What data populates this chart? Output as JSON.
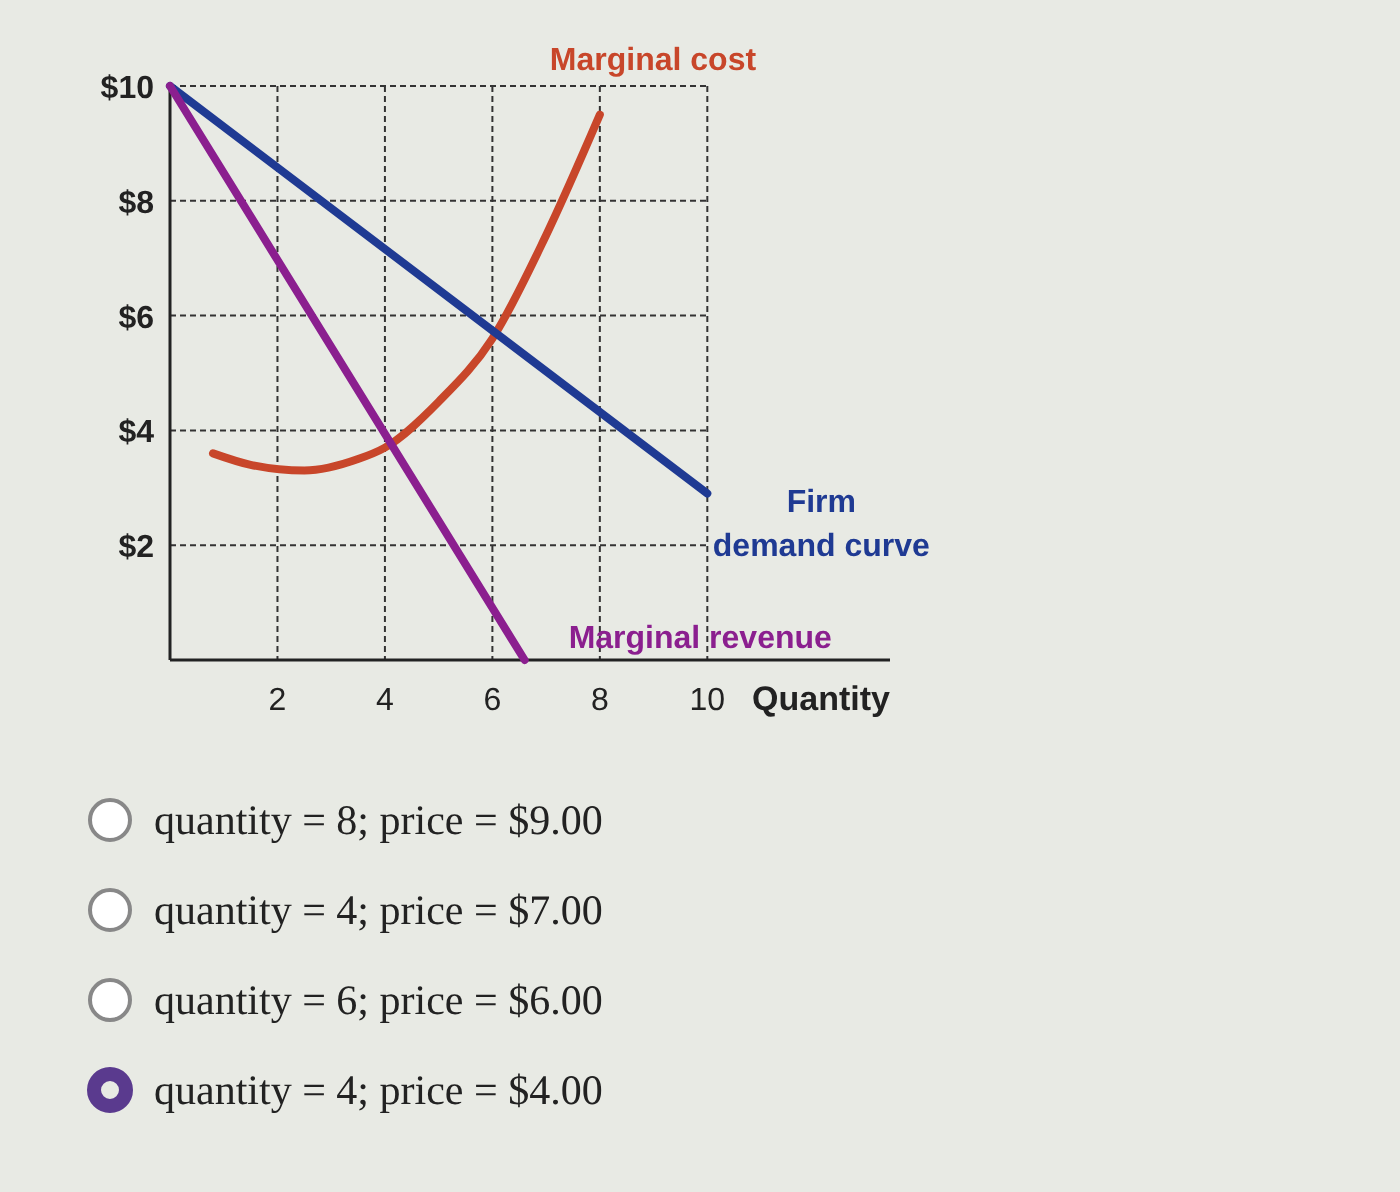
{
  "chart_data": {
    "type": "line",
    "xlabel": "Quantity",
    "xlim": [
      0,
      13.4
    ],
    "ylim": [
      0,
      10
    ],
    "xticks": [
      2,
      4,
      6,
      8,
      10
    ],
    "yticks": [
      {
        "value": 2,
        "label": "$2"
      },
      {
        "value": 4,
        "label": "$4"
      },
      {
        "value": 6,
        "label": "$6"
      },
      {
        "value": 8,
        "label": "$8"
      },
      {
        "value": 10,
        "label": "$10"
      }
    ],
    "grid": true,
    "marker": "none",
    "series": [
      {
        "name": "Marginal cost",
        "color": "#c8462a",
        "x": [
          0.8,
          1.5,
          2.5,
          3.5,
          4,
          5,
          6,
          7,
          8
        ],
        "values": [
          3.6,
          3.4,
          3.3,
          3.5,
          3.7,
          4.5,
          5.6,
          7.4,
          9.5
        ]
      },
      {
        "name": "Firm demand curve",
        "color": "#1f3a93",
        "x": [
          0,
          10
        ],
        "values": [
          10,
          2.9
        ]
      },
      {
        "name": "Marginal revenue",
        "color": "#8b1f8f",
        "x": [
          0,
          6.6
        ],
        "values": [
          10,
          0
        ]
      }
    ],
    "annotations": [
      "quantity = 8; price = $9.00",
      "quantity = 4; price = $7.00",
      "quantity = 6; price = $6.00",
      "quantity = 4; price = $4.00"
    ]
  }
}
